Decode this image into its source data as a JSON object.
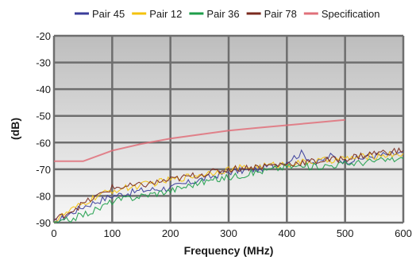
{
  "chart_data": {
    "type": "line",
    "xlabel": "Frequency (MHz)",
    "ylabel": "(dB)",
    "xlim": [
      0,
      600
    ],
    "ylim": [
      -90,
      -20
    ],
    "xticks": [
      0,
      100,
      200,
      300,
      400,
      500,
      600
    ],
    "yticks": [
      -20,
      -30,
      -40,
      -50,
      -60,
      -70,
      -80,
      -90
    ],
    "xtick_labels": [
      "0",
      "100",
      "200",
      "300",
      "400",
      "500",
      "600"
    ],
    "ytick_labels": [
      "-20",
      "-30",
      "-40",
      "-50",
      "-60",
      "-70",
      "-80",
      "-90"
    ],
    "grid": true,
    "legend_position": "top",
    "series": [
      {
        "name": "Pair 45",
        "color": "#3a3d9a",
        "x": [
          0,
          10,
          25,
          50,
          75,
          100,
          150,
          200,
          250,
          300,
          350,
          400,
          425,
          450,
          475,
          500,
          550,
          600
        ],
        "y": [
          -90,
          -89,
          -87,
          -84,
          -82,
          -80,
          -78,
          -77,
          -74,
          -71,
          -70,
          -67,
          -64,
          -68,
          -65,
          -67,
          -65,
          -64
        ]
      },
      {
        "name": "Pair 12",
        "color": "#f4c20d",
        "x": [
          0,
          10,
          25,
          50,
          75,
          100,
          150,
          200,
          250,
          300,
          350,
          400,
          450,
          500,
          550,
          600
        ],
        "y": [
          -90,
          -88,
          -86,
          -83,
          -80,
          -78,
          -76,
          -74,
          -72,
          -70,
          -69,
          -68,
          -67,
          -66,
          -65,
          -64
        ]
      },
      {
        "name": "Pair 36",
        "color": "#1e9e4a",
        "x": [
          0,
          10,
          25,
          50,
          75,
          100,
          150,
          200,
          250,
          300,
          350,
          400,
          450,
          500,
          550,
          600
        ],
        "y": [
          -91,
          -90,
          -89,
          -87,
          -85,
          -82,
          -80,
          -78,
          -75,
          -73,
          -71,
          -69,
          -69,
          -68,
          -67,
          -66
        ]
      },
      {
        "name": "Pair 78",
        "color": "#7a2a1e",
        "x": [
          0,
          10,
          25,
          50,
          75,
          100,
          150,
          200,
          250,
          300,
          350,
          400,
          450,
          500,
          550,
          600
        ],
        "y": [
          -89,
          -88,
          -86,
          -83,
          -80,
          -77,
          -76,
          -74,
          -72,
          -70,
          -69,
          -68,
          -67,
          -66,
          -64,
          -63
        ]
      },
      {
        "name": "Specification",
        "color": "#e0707a",
        "x": [
          0,
          50,
          100,
          150,
          200,
          250,
          300,
          350,
          400,
          450,
          500
        ],
        "y": [
          -67,
          -67,
          -63,
          -60.5,
          -58.5,
          -57,
          -55.5,
          -54.5,
          -53.5,
          -52.5,
          -51.5
        ]
      }
    ]
  }
}
